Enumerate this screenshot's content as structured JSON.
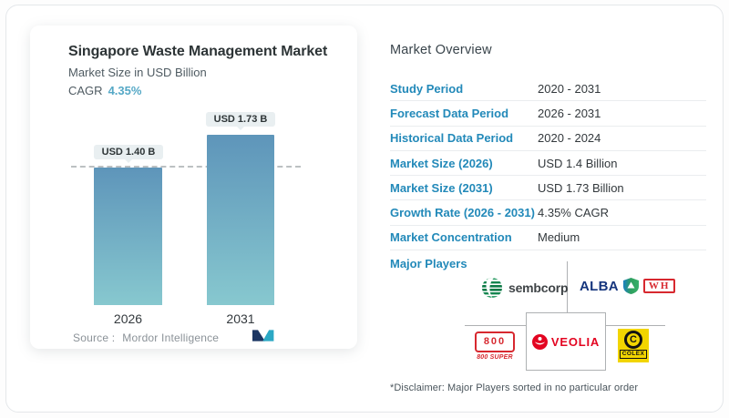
{
  "chart_card": {
    "title": "Singapore Waste Management Market",
    "subtitle": "Market Size in USD Billion",
    "cagr_label": "CAGR",
    "cagr_value": "4.35%",
    "source_label": "Source :",
    "source_name": "Mordor Intelligence"
  },
  "chart_data": {
    "type": "bar",
    "categories": [
      "2026",
      "2031"
    ],
    "values": [
      1.4,
      1.73
    ],
    "bar_labels": [
      "USD 1.40 B",
      "USD 1.73 B"
    ],
    "title": "Singapore Waste Management Market",
    "ylabel": "Market Size in USD Billion",
    "reference_line": 1.4,
    "ylim": [
      0,
      1.96
    ],
    "grid": "single dashed reference line at first bar value",
    "legend": "none",
    "colors": {
      "bar_top": "#5e95ba",
      "bar_bottom": "#87c8cf",
      "cagr_accent": "#55a8c6"
    }
  },
  "overview": {
    "title": "Market Overview",
    "rows": [
      {
        "label": "Study Period",
        "value": "2020 - 2031"
      },
      {
        "label": "Forecast Data Period",
        "value": "2026 - 2031"
      },
      {
        "label": "Historical Data Period",
        "value": "2020 - 2024"
      },
      {
        "label": "Market Size (2026)",
        "value": "USD 1.4 Billion"
      },
      {
        "label": "Market Size (2031)",
        "value": "USD 1.73 Billion"
      },
      {
        "label": "Growth Rate (2026 - 2031)",
        "value": "4.35% CAGR"
      },
      {
        "label": "Market Concentration",
        "value": "Medium"
      }
    ],
    "major_players_label": "Major Players",
    "players": [
      "Sembcorp",
      "ALBA W&H",
      "800 Super",
      "Veolia",
      "Colex"
    ],
    "disclaimer": "*Disclaimer: Major Players sorted in no particular order"
  },
  "logos": {
    "sembcorp_text": "sembcorp",
    "alba_text": "ALBA",
    "wh_text": "WH",
    "super800_number": "800",
    "super800_text": "800 SUPER",
    "veolia_text": "VEOLIA",
    "colex_letter": "C",
    "colex_text": "COLEX"
  }
}
